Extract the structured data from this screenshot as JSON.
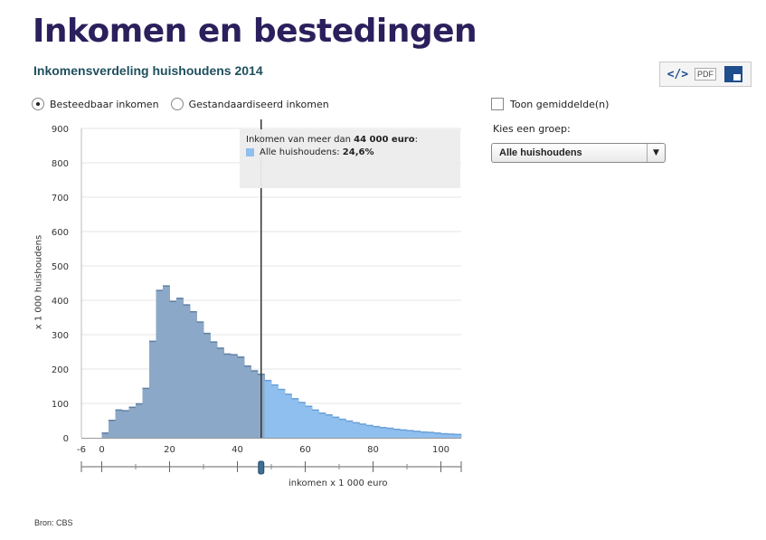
{
  "header": {
    "title": "Inkomen en bestedingen",
    "subtitle": "Inkomensverdeling huishoudens 2014"
  },
  "toolbar": {
    "embed_label": "</>",
    "pdf_label": "PDF",
    "icons": [
      "embed-code-icon",
      "pdf-icon",
      "fullscreen-icon"
    ]
  },
  "controls": {
    "radios": [
      {
        "label": "Besteedbaar inkomen",
        "selected": true
      },
      {
        "label": "Gestandaardiseerd inkomen",
        "selected": false
      }
    ],
    "show_average_label": "Toon gemiddelde(n)",
    "group_label": "Kies een groep:",
    "group_selected": "Alle huishoudens"
  },
  "tooltip": {
    "prefix": "Inkomen van meer dan",
    "amount": "44 000 euro",
    "suffix": ":",
    "series": "Alle huishoudens:",
    "value": "24,6%"
  },
  "source": "Bron: CBS",
  "colors": {
    "left_fill": "#8ca8c8",
    "left_stroke": "#5f7fa3",
    "right_fill": "#8fbfee",
    "right_stroke": "#6a9fd6",
    "cursor": "#333333",
    "grid": "#e6e6e6"
  },
  "chart_data": {
    "type": "bar",
    "xlabel": "inkomen x 1 000 euro",
    "ylabel": "x 1 000 huishoudens",
    "xlim": [
      -6,
      106
    ],
    "ylim": [
      0,
      900
    ],
    "x_ticks": [
      -6,
      0,
      20,
      40,
      60,
      80,
      100
    ],
    "y_ticks": [
      0,
      100,
      200,
      300,
      400,
      500,
      600,
      700,
      800,
      900
    ],
    "bin_width": 2,
    "bins_start": [
      -6,
      -4,
      -2,
      0,
      2,
      4,
      6,
      8,
      10,
      12,
      14,
      16,
      18,
      20,
      22,
      24,
      26,
      28,
      30,
      32,
      34,
      36,
      38,
      40,
      42,
      44,
      46,
      48,
      50,
      52,
      54,
      56,
      58,
      60,
      62,
      64,
      66,
      68,
      70,
      72,
      74,
      76,
      78,
      80,
      82,
      84,
      86,
      88,
      90,
      92,
      94,
      96,
      98,
      100,
      102,
      104
    ],
    "values": [
      0,
      0,
      0,
      15,
      52,
      82,
      80,
      90,
      100,
      145,
      282,
      430,
      443,
      398,
      407,
      388,
      368,
      338,
      305,
      280,
      262,
      245,
      243,
      236,
      210,
      196,
      186,
      168,
      155,
      142,
      128,
      115,
      104,
      93,
      82,
      73,
      68,
      61,
      55,
      50,
      45,
      41,
      37,
      34,
      31,
      29,
      26,
      24,
      22,
      20,
      18,
      17,
      15,
      13,
      12,
      11
    ],
    "cursor_x": 47,
    "split_at": 47
  }
}
